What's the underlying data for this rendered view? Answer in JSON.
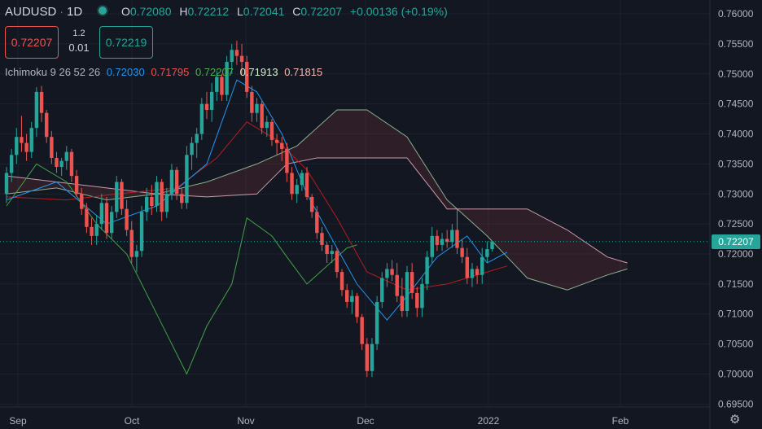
{
  "header": {
    "symbol": "AUDUSD",
    "interval": "1D",
    "open_label": "O",
    "open": "0.72080",
    "high_label": "H",
    "high": "0.72212",
    "low_label": "L",
    "low": "0.72041",
    "close_label": "C",
    "close": "0.72207",
    "change": "+0.00136 (+0.19%)"
  },
  "trade": {
    "sell": "0.72207",
    "spread_top": "1.2",
    "spread_bottom": "0.01",
    "buy": "0.72219"
  },
  "indicator": {
    "name": "Ichimoku 9 26 52 26",
    "v1": "0.72030",
    "v2": "0.71795",
    "v3": "0.72207",
    "v4": "0.71913",
    "v5": "0.71815",
    "colors": {
      "v1": "#2196f3",
      "v2": "#ef5350",
      "v3": "#4caf50",
      "v4": "#b2dfb0",
      "v5": "#f7b7b0"
    }
  },
  "price_tag": "0.72207",
  "colors": {
    "up": "#26a69a",
    "down": "#ef5350",
    "conversion": "#2196f3",
    "base": "#b71c1c",
    "lagging": "#43a047",
    "spanA": "#a5d6a7",
    "spanB": "#f8bbd0"
  },
  "chart_data": {
    "type": "candlestick",
    "title": "AUDUSD 1D",
    "y_axis_ticks": [
      "0.76000",
      "0.75500",
      "0.75000",
      "0.74500",
      "0.74000",
      "0.73500",
      "0.73000",
      "0.72500",
      "0.72000",
      "0.71500",
      "0.71000",
      "0.70500",
      "0.70000",
      "0.69500"
    ],
    "x_axis_labels": [
      "Sep",
      "Oct",
      "Nov",
      "Dec",
      "2022",
      "Feb"
    ],
    "ylim": [
      0.6945,
      0.7615
    ],
    "candles": [
      [
        0.73,
        0.7345,
        0.7285,
        0.7335
      ],
      [
        0.7335,
        0.7375,
        0.732,
        0.7365
      ],
      [
        0.7365,
        0.741,
        0.735,
        0.7395
      ],
      [
        0.7395,
        0.743,
        0.737,
        0.7385
      ],
      [
        0.7385,
        0.74,
        0.7355,
        0.737
      ],
      [
        0.737,
        0.742,
        0.736,
        0.741
      ],
      [
        0.741,
        0.7478,
        0.7395,
        0.747
      ],
      [
        0.747,
        0.748,
        0.742,
        0.7435
      ],
      [
        0.7435,
        0.744,
        0.7385,
        0.7395
      ],
      [
        0.7395,
        0.7405,
        0.735,
        0.736
      ],
      [
        0.736,
        0.737,
        0.7335,
        0.7345
      ],
      [
        0.7345,
        0.736,
        0.733,
        0.7355
      ],
      [
        0.7355,
        0.738,
        0.734,
        0.737
      ],
      [
        0.737,
        0.7375,
        0.732,
        0.733
      ],
      [
        0.733,
        0.734,
        0.7295,
        0.73
      ],
      [
        0.73,
        0.731,
        0.7265,
        0.7275
      ],
      [
        0.7275,
        0.7285,
        0.7235,
        0.7245
      ],
      [
        0.7245,
        0.726,
        0.7215,
        0.723
      ],
      [
        0.723,
        0.7265,
        0.7215,
        0.725
      ],
      [
        0.725,
        0.73,
        0.724,
        0.7285
      ],
      [
        0.7285,
        0.7295,
        0.7225,
        0.7235
      ],
      [
        0.7235,
        0.728,
        0.7225,
        0.727
      ],
      [
        0.727,
        0.733,
        0.726,
        0.732
      ],
      [
        0.732,
        0.7325,
        0.7265,
        0.7275
      ],
      [
        0.7275,
        0.729,
        0.723,
        0.724
      ],
      [
        0.724,
        0.7255,
        0.7185,
        0.7195
      ],
      [
        0.7195,
        0.7215,
        0.717,
        0.7205
      ],
      [
        0.7205,
        0.728,
        0.7195,
        0.727
      ],
      [
        0.727,
        0.731,
        0.7255,
        0.7295
      ],
      [
        0.7295,
        0.7315,
        0.7265,
        0.728
      ],
      [
        0.728,
        0.733,
        0.727,
        0.732
      ],
      [
        0.732,
        0.7325,
        0.7255,
        0.727
      ],
      [
        0.727,
        0.731,
        0.726,
        0.73
      ],
      [
        0.73,
        0.735,
        0.729,
        0.734
      ],
      [
        0.734,
        0.7345,
        0.729,
        0.73
      ],
      [
        0.73,
        0.731,
        0.7275,
        0.7285
      ],
      [
        0.7285,
        0.738,
        0.7275,
        0.7365
      ],
      [
        0.7365,
        0.7395,
        0.734,
        0.7385
      ],
      [
        0.7385,
        0.741,
        0.736,
        0.74
      ],
      [
        0.74,
        0.746,
        0.739,
        0.745
      ],
      [
        0.745,
        0.747,
        0.7425,
        0.744
      ],
      [
        0.744,
        0.7485,
        0.742,
        0.747
      ],
      [
        0.747,
        0.7505,
        0.7455,
        0.7495
      ],
      [
        0.7495,
        0.75,
        0.7455,
        0.7465
      ],
      [
        0.7465,
        0.753,
        0.7455,
        0.752
      ],
      [
        0.752,
        0.755,
        0.75,
        0.754
      ],
      [
        0.754,
        0.7555,
        0.7515,
        0.753
      ],
      [
        0.753,
        0.755,
        0.75,
        0.752
      ],
      [
        0.752,
        0.753,
        0.746,
        0.747
      ],
      [
        0.747,
        0.748,
        0.742,
        0.7435
      ],
      [
        0.7435,
        0.746,
        0.742,
        0.745
      ],
      [
        0.745,
        0.7455,
        0.74,
        0.741
      ],
      [
        0.741,
        0.743,
        0.7395,
        0.742
      ],
      [
        0.742,
        0.7425,
        0.738,
        0.739
      ],
      [
        0.739,
        0.74,
        0.7365,
        0.7385
      ],
      [
        0.7385,
        0.7395,
        0.7355,
        0.7375
      ],
      [
        0.7375,
        0.7385,
        0.732,
        0.7335
      ],
      [
        0.7335,
        0.7345,
        0.729,
        0.73
      ],
      [
        0.73,
        0.7325,
        0.7285,
        0.7315
      ],
      [
        0.7315,
        0.734,
        0.7305,
        0.7335
      ],
      [
        0.7335,
        0.7345,
        0.729,
        0.7295
      ],
      [
        0.7295,
        0.73,
        0.726,
        0.727
      ],
      [
        0.727,
        0.728,
        0.7225,
        0.7235
      ],
      [
        0.7235,
        0.7245,
        0.7205,
        0.7215
      ],
      [
        0.7215,
        0.722,
        0.7185,
        0.72
      ],
      [
        0.72,
        0.7215,
        0.7185,
        0.7205
      ],
      [
        0.7205,
        0.721,
        0.716,
        0.717
      ],
      [
        0.717,
        0.7175,
        0.713,
        0.714
      ],
      [
        0.714,
        0.715,
        0.711,
        0.712
      ],
      [
        0.712,
        0.714,
        0.71,
        0.713
      ],
      [
        0.713,
        0.7135,
        0.7085,
        0.7095
      ],
      [
        0.7095,
        0.71,
        0.704,
        0.705
      ],
      [
        0.705,
        0.706,
        0.6995,
        0.7005
      ],
      [
        0.7005,
        0.706,
        0.6995,
        0.705
      ],
      [
        0.705,
        0.713,
        0.704,
        0.712
      ],
      [
        0.712,
        0.717,
        0.711,
        0.716
      ],
      [
        0.716,
        0.7185,
        0.7145,
        0.7175
      ],
      [
        0.7175,
        0.719,
        0.7155,
        0.7165
      ],
      [
        0.7165,
        0.7185,
        0.712,
        0.713
      ],
      [
        0.713,
        0.716,
        0.7095,
        0.7105
      ],
      [
        0.7105,
        0.718,
        0.7095,
        0.717
      ],
      [
        0.717,
        0.7185,
        0.7125,
        0.7135
      ],
      [
        0.7135,
        0.7145,
        0.7095,
        0.711
      ],
      [
        0.711,
        0.716,
        0.7095,
        0.715
      ],
      [
        0.715,
        0.7205,
        0.714,
        0.7195
      ],
      [
        0.7195,
        0.7245,
        0.7185,
        0.723
      ],
      [
        0.723,
        0.724,
        0.7205,
        0.7215
      ],
      [
        0.7215,
        0.7235,
        0.7205,
        0.7225
      ],
      [
        0.7225,
        0.724,
        0.721,
        0.722
      ],
      [
        0.722,
        0.725,
        0.721,
        0.724
      ],
      [
        0.724,
        0.7275,
        0.72,
        0.721
      ],
      [
        0.721,
        0.7225,
        0.7185,
        0.7195
      ],
      [
        0.7195,
        0.721,
        0.715,
        0.716
      ],
      [
        0.716,
        0.7185,
        0.7145,
        0.7175
      ],
      [
        0.7175,
        0.718,
        0.715,
        0.7165
      ],
      [
        0.7165,
        0.721,
        0.715,
        0.7195
      ],
      [
        0.7195,
        0.7221,
        0.7185,
        0.7208
      ],
      [
        0.7208,
        0.7221,
        0.7204,
        0.7221
      ]
    ],
    "conversion_line": [
      [
        0,
        0.729
      ],
      [
        10,
        0.732
      ],
      [
        20,
        0.725
      ],
      [
        30,
        0.728
      ],
      [
        40,
        0.735
      ],
      [
        46,
        0.749
      ],
      [
        50,
        0.747
      ],
      [
        55,
        0.74
      ],
      [
        60,
        0.73
      ],
      [
        66,
        0.721
      ],
      [
        70,
        0.715
      ],
      [
        76,
        0.709
      ],
      [
        80,
        0.713
      ],
      [
        86,
        0.7195
      ],
      [
        92,
        0.723
      ],
      [
        96,
        0.7185
      ],
      [
        100,
        0.7203
      ]
    ],
    "base_line": [
      [
        0,
        0.7295
      ],
      [
        12,
        0.729
      ],
      [
        22,
        0.73
      ],
      [
        34,
        0.731
      ],
      [
        42,
        0.736
      ],
      [
        48,
        0.742
      ],
      [
        54,
        0.739
      ],
      [
        60,
        0.734
      ],
      [
        66,
        0.726
      ],
      [
        72,
        0.717
      ],
      [
        80,
        0.714
      ],
      [
        88,
        0.715
      ],
      [
        96,
        0.717
      ],
      [
        100,
        0.718
      ]
    ],
    "lagging_span": [
      [
        0,
        0.728
      ],
      [
        6,
        0.735
      ],
      [
        12,
        0.732
      ],
      [
        18,
        0.725
      ],
      [
        24,
        0.72
      ],
      [
        30,
        0.71
      ],
      [
        36,
        0.7
      ],
      [
        40,
        0.708
      ],
      [
        45,
        0.715
      ],
      [
        48,
        0.726
      ],
      [
        53,
        0.723
      ],
      [
        56,
        0.7195
      ],
      [
        60,
        0.715
      ],
      [
        64,
        0.718
      ],
      [
        68,
        0.721
      ],
      [
        70,
        0.7215
      ]
    ],
    "span_a": [
      [
        0,
        0.73
      ],
      [
        10,
        0.731
      ],
      [
        20,
        0.729
      ],
      [
        30,
        0.73
      ],
      [
        40,
        0.732
      ],
      [
        50,
        0.735
      ],
      [
        58,
        0.738
      ],
      [
        66,
        0.744
      ],
      [
        72,
        0.744
      ],
      [
        80,
        0.7395
      ],
      [
        88,
        0.729
      ],
      [
        96,
        0.723
      ],
      [
        104,
        0.716
      ],
      [
        112,
        0.714
      ],
      [
        120,
        0.7165
      ],
      [
        124,
        0.7175
      ]
    ],
    "span_b": [
      [
        0,
        0.733
      ],
      [
        10,
        0.732
      ],
      [
        20,
        0.731
      ],
      [
        30,
        0.73
      ],
      [
        40,
        0.7295
      ],
      [
        50,
        0.73
      ],
      [
        56,
        0.735
      ],
      [
        62,
        0.736
      ],
      [
        72,
        0.736
      ],
      [
        80,
        0.736
      ],
      [
        88,
        0.7275
      ],
      [
        96,
        0.7275
      ],
      [
        104,
        0.7275
      ],
      [
        112,
        0.724
      ],
      [
        120,
        0.7195
      ],
      [
        124,
        0.7185
      ]
    ],
    "last_price": 0.72207
  }
}
